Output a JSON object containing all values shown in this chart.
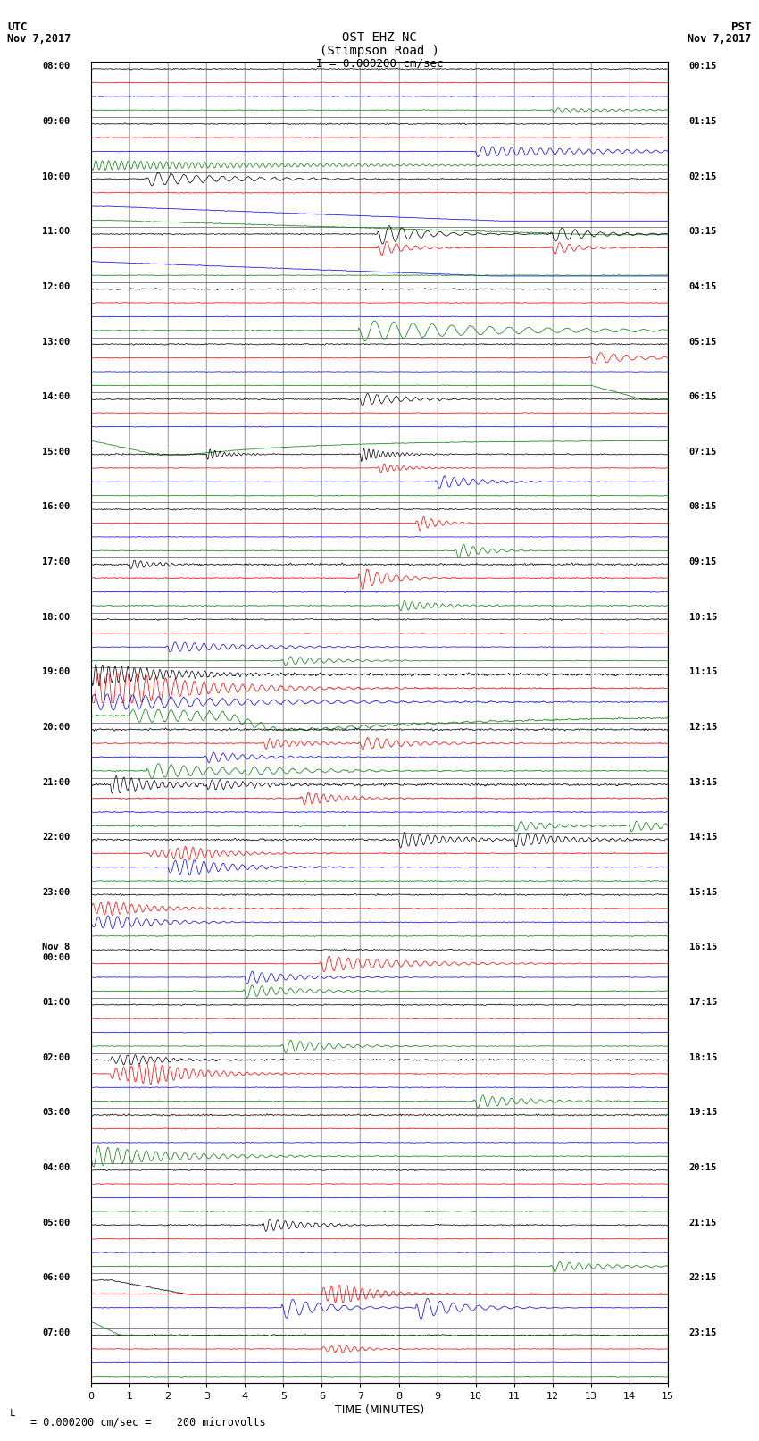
{
  "title_line1": "OST EHZ NC",
  "title_line2": "(Stimpson Road )",
  "scale_label": "I = 0.000200 cm/sec",
  "xlabel": "TIME (MINUTES)",
  "footer": "= 0.000200 cm/sec =    200 microvolts",
  "left_times": [
    "08:00",
    "09:00",
    "10:00",
    "11:00",
    "12:00",
    "13:00",
    "14:00",
    "15:00",
    "16:00",
    "17:00",
    "18:00",
    "19:00",
    "20:00",
    "21:00",
    "22:00",
    "23:00",
    "Nov 8\n00:00",
    "01:00",
    "02:00",
    "03:00",
    "04:00",
    "05:00",
    "06:00",
    "07:00"
  ],
  "right_times": [
    "00:15",
    "01:15",
    "02:15",
    "03:15",
    "04:15",
    "05:15",
    "06:15",
    "07:15",
    "08:15",
    "09:15",
    "10:15",
    "11:15",
    "12:15",
    "13:15",
    "14:15",
    "15:15",
    "16:15",
    "17:15",
    "18:15",
    "19:15",
    "20:15",
    "21:15",
    "22:15",
    "23:15"
  ],
  "num_hours": 24,
  "traces_per_hour": 4,
  "colors": [
    "black",
    "red",
    "blue",
    "green"
  ],
  "bg_color": "#ffffff",
  "x_ticks": [
    0,
    1,
    2,
    3,
    4,
    5,
    6,
    7,
    8,
    9,
    10,
    11,
    12,
    13,
    14,
    15
  ],
  "xlim": [
    0,
    15
  ],
  "seed": 42
}
